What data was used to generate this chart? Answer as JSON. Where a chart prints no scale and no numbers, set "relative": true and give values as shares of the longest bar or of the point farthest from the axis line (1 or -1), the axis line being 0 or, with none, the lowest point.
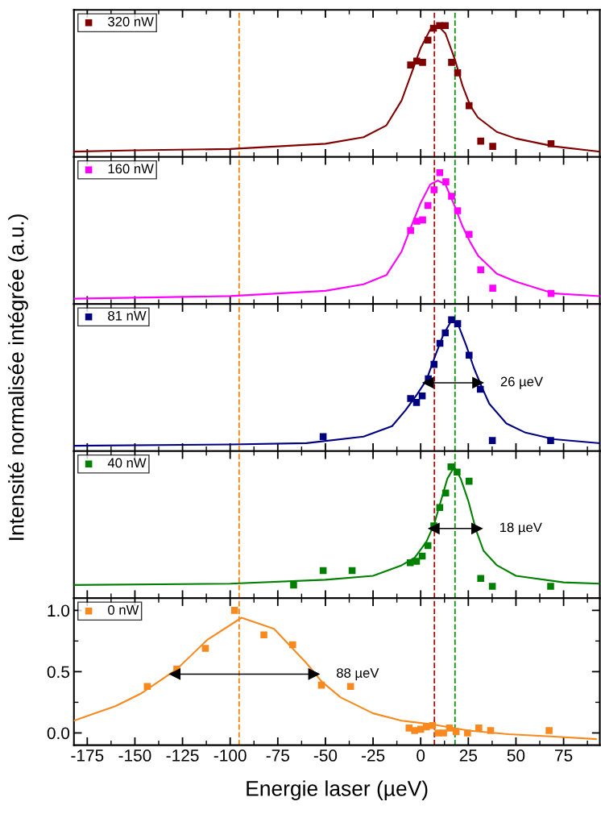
{
  "chart_data": [
    {
      "type": "scatter",
      "relative": true,
      "tick_labels": false,
      "legend": "top left",
      "xlim": [
        -182,
        94
      ],
      "xticks": [
        -175,
        -150,
        -125,
        -100,
        -75,
        -50,
        -25,
        0,
        25,
        50,
        75
      ],
      "ref_lines": [
        {
          "axis": "x",
          "value": -95.3,
          "color": "#ff8000",
          "line_style": "dashed"
        },
        {
          "axis": "x",
          "value": 7.2,
          "color": "#a01010",
          "line_style": "dashed"
        },
        {
          "axis": "x",
          "value": 18.0,
          "color": "#109010",
          "line_style": "dashed"
        }
      ],
      "series": [
        {
          "name": "320 nW",
          "marker": "square",
          "color": "#800000",
          "x": [
            -5.3,
            -2.1,
            1.0,
            3.8,
            6.7,
            9.9,
            12.9,
            16.2,
            19.4,
            25.4,
            31.5,
            37.8,
            68.4
          ],
          "values": [
            0.7,
            0.73,
            0.72,
            0.89,
            0.98,
            1.0,
            1.0,
            0.72,
            0.64,
            0.39,
            0.12,
            0.08,
            0.1
          ]
        },
        {
          "type": "line",
          "marker": "none",
          "color": "#800000",
          "x": [
            -182,
            -150,
            -100,
            -50,
            -30,
            -18,
            -10,
            -5,
            0,
            5,
            9,
            13,
            18,
            22,
            26,
            30,
            40,
            50,
            70,
            94
          ],
          "values": [
            0.04,
            0.05,
            0.06,
            0.1,
            0.15,
            0.24,
            0.43,
            0.63,
            0.83,
            0.97,
            1.0,
            0.94,
            0.74,
            0.54,
            0.39,
            0.3,
            0.19,
            0.14,
            0.08,
            0.04
          ]
        }
      ]
    },
    {
      "type": "scatter",
      "relative": true,
      "tick_labels": false,
      "legend": "top left",
      "xlim": [
        -182,
        94
      ],
      "xticks": [
        -175,
        -150,
        -125,
        -100,
        -75,
        -50,
        -25,
        0,
        25,
        50,
        75
      ],
      "ref_lines": [
        {
          "axis": "x",
          "value": -95.3,
          "color": "#ff8000",
          "line_style": "dashed"
        },
        {
          "axis": "x",
          "value": 7.2,
          "color": "#a01010",
          "line_style": "dashed"
        },
        {
          "axis": "x",
          "value": 18.0,
          "color": "#109010",
          "line_style": "dashed"
        }
      ],
      "series": [
        {
          "name": "160 nW",
          "marker": "square",
          "color": "#ff00ff",
          "x": [
            -5.3,
            -2.0,
            1.0,
            3.8,
            7.0,
            10.0,
            13.2,
            16.2,
            19.4,
            25.4,
            31.5,
            37.8,
            68.4
          ],
          "values": [
            0.56,
            0.63,
            0.64,
            0.75,
            0.87,
            1.0,
            0.93,
            0.82,
            0.71,
            0.53,
            0.26,
            0.12,
            0.08
          ]
        },
        {
          "type": "line",
          "marker": "none",
          "color": "#ff00ff",
          "x": [
            -182,
            -100,
            -50,
            -30,
            -18,
            -10,
            -5,
            0,
            5,
            9,
            13,
            18,
            22,
            26,
            30,
            40,
            50,
            70,
            94
          ],
          "values": [
            0.04,
            0.06,
            0.1,
            0.15,
            0.22,
            0.4,
            0.59,
            0.77,
            0.91,
            0.94,
            0.91,
            0.74,
            0.59,
            0.47,
            0.37,
            0.23,
            0.17,
            0.08,
            0.06
          ]
        }
      ]
    },
    {
      "type": "scatter",
      "relative": true,
      "tick_labels": false,
      "legend": "top left",
      "xlim": [
        -182,
        94
      ],
      "xticks": [
        -175,
        -150,
        -125,
        -100,
        -75,
        -50,
        -25,
        0,
        25,
        50,
        75
      ],
      "ref_lines": [
        {
          "axis": "x",
          "value": -95.3,
          "color": "#ff8000",
          "line_style": "dashed"
        },
        {
          "axis": "x",
          "value": 7.2,
          "color": "#a01010",
          "line_style": "dashed"
        },
        {
          "axis": "x",
          "value": 18.0,
          "color": "#109010",
          "line_style": "dashed"
        }
      ],
      "annotations": [
        "26 µeV"
      ],
      "series": [
        {
          "name": "81 nW",
          "marker": "square",
          "color": "#000080",
          "x": [
            -51.2,
            -5.3,
            -2.2,
            0.8,
            4.0,
            7.0,
            10.1,
            12.9,
            16.2,
            19.4,
            25.4,
            31.3,
            37.6,
            68.2
          ],
          "values": [
            0.11,
            0.4,
            0.37,
            0.42,
            0.55,
            0.66,
            0.82,
            0.9,
            1.0,
            0.97,
            0.73,
            0.47,
            0.08,
            0.08
          ]
        },
        {
          "type": "line",
          "marker": "none",
          "color": "#000080",
          "x": [
            -182,
            -100,
            -60,
            -30,
            -15,
            -8,
            -2,
            3,
            8,
            12,
            16.4,
            20,
            24,
            28,
            32,
            36,
            45,
            55,
            70,
            94
          ],
          "values": [
            0.04,
            0.05,
            0.06,
            0.11,
            0.19,
            0.31,
            0.43,
            0.54,
            0.74,
            0.89,
            1.0,
            0.95,
            0.8,
            0.63,
            0.49,
            0.36,
            0.21,
            0.14,
            0.09,
            0.06
          ]
        },
        {
          "type": "line",
          "marker": "triangle",
          "color": "#000000",
          "x": [
            4.0,
            30.0
          ],
          "values": [
            0.52,
            0.52
          ]
        }
      ]
    },
    {
      "type": "scatter",
      "relative": true,
      "tick_labels": false,
      "legend": "top left",
      "xlim": [
        -182,
        94
      ],
      "xticks": [
        -175,
        -150,
        -125,
        -100,
        -75,
        -50,
        -25,
        0,
        25,
        50,
        75
      ],
      "ref_lines": [
        {
          "axis": "x",
          "value": -95.3,
          "color": "#ff8000",
          "line_style": "dashed"
        },
        {
          "axis": "x",
          "value": 7.2,
          "color": "#a01010",
          "line_style": "dashed"
        },
        {
          "axis": "x",
          "value": 18.0,
          "color": "#109010",
          "line_style": "dashed"
        }
      ],
      "annotations": [
        "18 µeV"
      ],
      "series": [
        {
          "name": "40 nW",
          "marker": "square",
          "color": "#008000",
          "x": [
            -66.7,
            -51.2,
            -36.0,
            -5.5,
            -2.2,
            0.8,
            3.8,
            6.9,
            10.0,
            13.1,
            15.9,
            19.1,
            25.4,
            31.5,
            37.6,
            68.2
          ],
          "values": [
            0.1,
            0.21,
            0.21,
            0.27,
            0.28,
            0.32,
            0.4,
            0.55,
            0.69,
            0.8,
            1.0,
            0.96,
            0.89,
            0.15,
            0.09,
            0.09
          ]
        },
        {
          "type": "line",
          "marker": "none",
          "color": "#008000",
          "x": [
            -182,
            -100,
            -50,
            -25,
            -10,
            -3,
            3,
            7,
            10,
            14,
            17.6,
            21,
            25,
            29,
            33,
            40,
            50,
            75,
            94
          ],
          "values": [
            0.1,
            0.11,
            0.14,
            0.17,
            0.25,
            0.31,
            0.43,
            0.56,
            0.71,
            0.91,
            1.0,
            0.91,
            0.74,
            0.52,
            0.36,
            0.25,
            0.17,
            0.12,
            0.11
          ]
        },
        {
          "type": "line",
          "marker": "triangle",
          "color": "#000000",
          "x": [
            7.0,
            29.5
          ],
          "values": [
            0.53,
            0.53
          ]
        }
      ]
    },
    {
      "type": "scatter",
      "legend": "top left",
      "xlim": [
        -182,
        94
      ],
      "ylim": [
        -0.1,
        1.1
      ],
      "xticks": [
        -175,
        -150,
        -125,
        -100,
        -75,
        -50,
        -25,
        0,
        25,
        50,
        75
      ],
      "yticks": [
        {
          "value": 0,
          "label": "0.0"
        },
        0.5,
        {
          "value": 1,
          "label": "1.0"
        }
      ],
      "xlabel": "Energie laser (µeV)",
      "ylabel": "Intensité normalisée intégrée (a.u.)",
      "ref_lines": [
        {
          "axis": "x",
          "value": -95.3,
          "color": "#ff8000",
          "line_style": "dashed"
        },
        {
          "axis": "x",
          "value": 7.2,
          "color": "#a01010",
          "line_style": "dashed"
        },
        {
          "axis": "x",
          "value": 18.0,
          "color": "#109010",
          "line_style": "dashed"
        }
      ],
      "annotations": [
        "88 µeV"
      ],
      "series": [
        {
          "name": "0 nW",
          "marker": "square",
          "color": "#f7891f",
          "x": [
            -143.5,
            -128.0,
            -113.0,
            -97.7,
            -82.3,
            -67.2,
            -52.1,
            -36.8,
            -6.1,
            -3.2,
            0,
            3.0,
            6.2,
            9.1,
            12.0,
            15.1,
            18.6,
            24.6,
            30.5,
            36.7,
            67.4
          ],
          "values": [
            0.38,
            0.52,
            0.69,
            1.0,
            0.8,
            0.72,
            0.39,
            0.38,
            0.04,
            0.02,
            0.03,
            0.05,
            0.06,
            0.0,
            0.0,
            0.04,
            0.01,
            0.0,
            0.04,
            0.02,
            0.02
          ]
        },
        {
          "type": "line",
          "marker": "none",
          "color": "#f7891f",
          "x": [
            -182,
            -160,
            -147,
            -128,
            -112,
            -94,
            -77,
            -60,
            -52,
            -42,
            -25,
            -10,
            6,
            25,
            46,
            70,
            92
          ],
          "values": [
            0.1,
            0.22,
            0.32,
            0.52,
            0.76,
            0.94,
            0.85,
            0.57,
            0.42,
            0.29,
            0.16,
            0.1,
            0.07,
            0.02,
            -0.01,
            -0.03,
            -0.05
          ]
        },
        {
          "type": "line",
          "marker": "triangle",
          "color": "#000000",
          "x": [
            -129.0,
            -56.1
          ],
          "values": [
            0.48,
            0.48
          ]
        }
      ]
    }
  ]
}
